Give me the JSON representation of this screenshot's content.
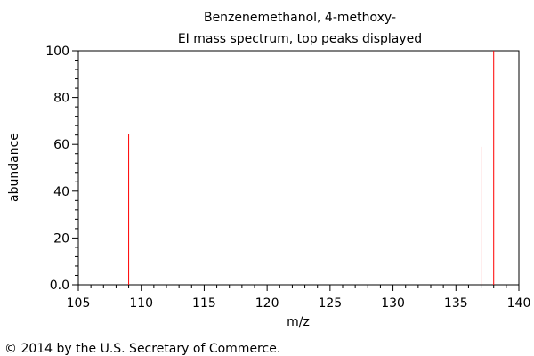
{
  "header": {
    "title": "Benzenemethanol, 4-methoxy-",
    "subtitle": "EI mass spectrum, top peaks displayed"
  },
  "footer": {
    "copyright": "© 2014 by the U.S. Secretary of Commerce."
  },
  "colors": {
    "peak": "#ff0000",
    "axis": "#000000"
  },
  "chart_data": {
    "type": "bar",
    "title": "Benzenemethanol, 4-methoxy-",
    "subtitle": "EI mass spectrum, top peaks displayed",
    "xlabel": "m/z",
    "ylabel": "abundance",
    "xlim": [
      105,
      140
    ],
    "ylim": [
      0,
      100
    ],
    "x_ticks": [
      "105",
      "110",
      "115",
      "120",
      "125",
      "130",
      "135",
      "140"
    ],
    "y_ticks": [
      "0.0",
      "20",
      "40",
      "60",
      "80",
      "100"
    ],
    "x_minor_step": 1,
    "y_minor_step": 4,
    "grid": false,
    "peaks": [
      {
        "mz": 109,
        "abundance": 64.5
      },
      {
        "mz": 137,
        "abundance": 59
      },
      {
        "mz": 138,
        "abundance": 100
      }
    ]
  }
}
